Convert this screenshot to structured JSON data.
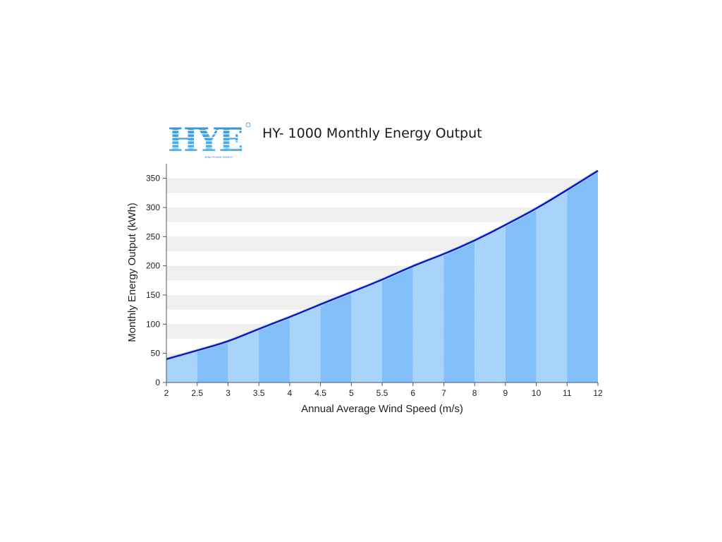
{
  "logo": {
    "text": "HYE",
    "tagline": "WIND POWER ENERGY"
  },
  "chart_data": {
    "type": "area",
    "title": "HY- 1000 Monthly Energy Output",
    "xlabel": "Annual Average Wind Speed (m/s)",
    "ylabel": "Monthly Energy Output (kWh)",
    "categories": [
      "2",
      "2.5",
      "3",
      "3.5",
      "4",
      "4.5",
      "5",
      "5.5",
      "6",
      "7",
      "8",
      "9",
      "10",
      "11",
      "12"
    ],
    "values": [
      40,
      55,
      70,
      92,
      112,
      134,
      155,
      176,
      200,
      220,
      243,
      270,
      298,
      330,
      363
    ],
    "y_ticks": [
      0,
      50,
      100,
      150,
      200,
      250,
      300,
      350
    ],
    "ylim": [
      0,
      375
    ],
    "grid": "horizontal-bands",
    "legend": "none",
    "colors": {
      "line": "#1510c8",
      "fill_dark": "#82bff9",
      "fill_light": "#a8d3fb",
      "band": "#efefef",
      "axis": "#555555"
    }
  }
}
